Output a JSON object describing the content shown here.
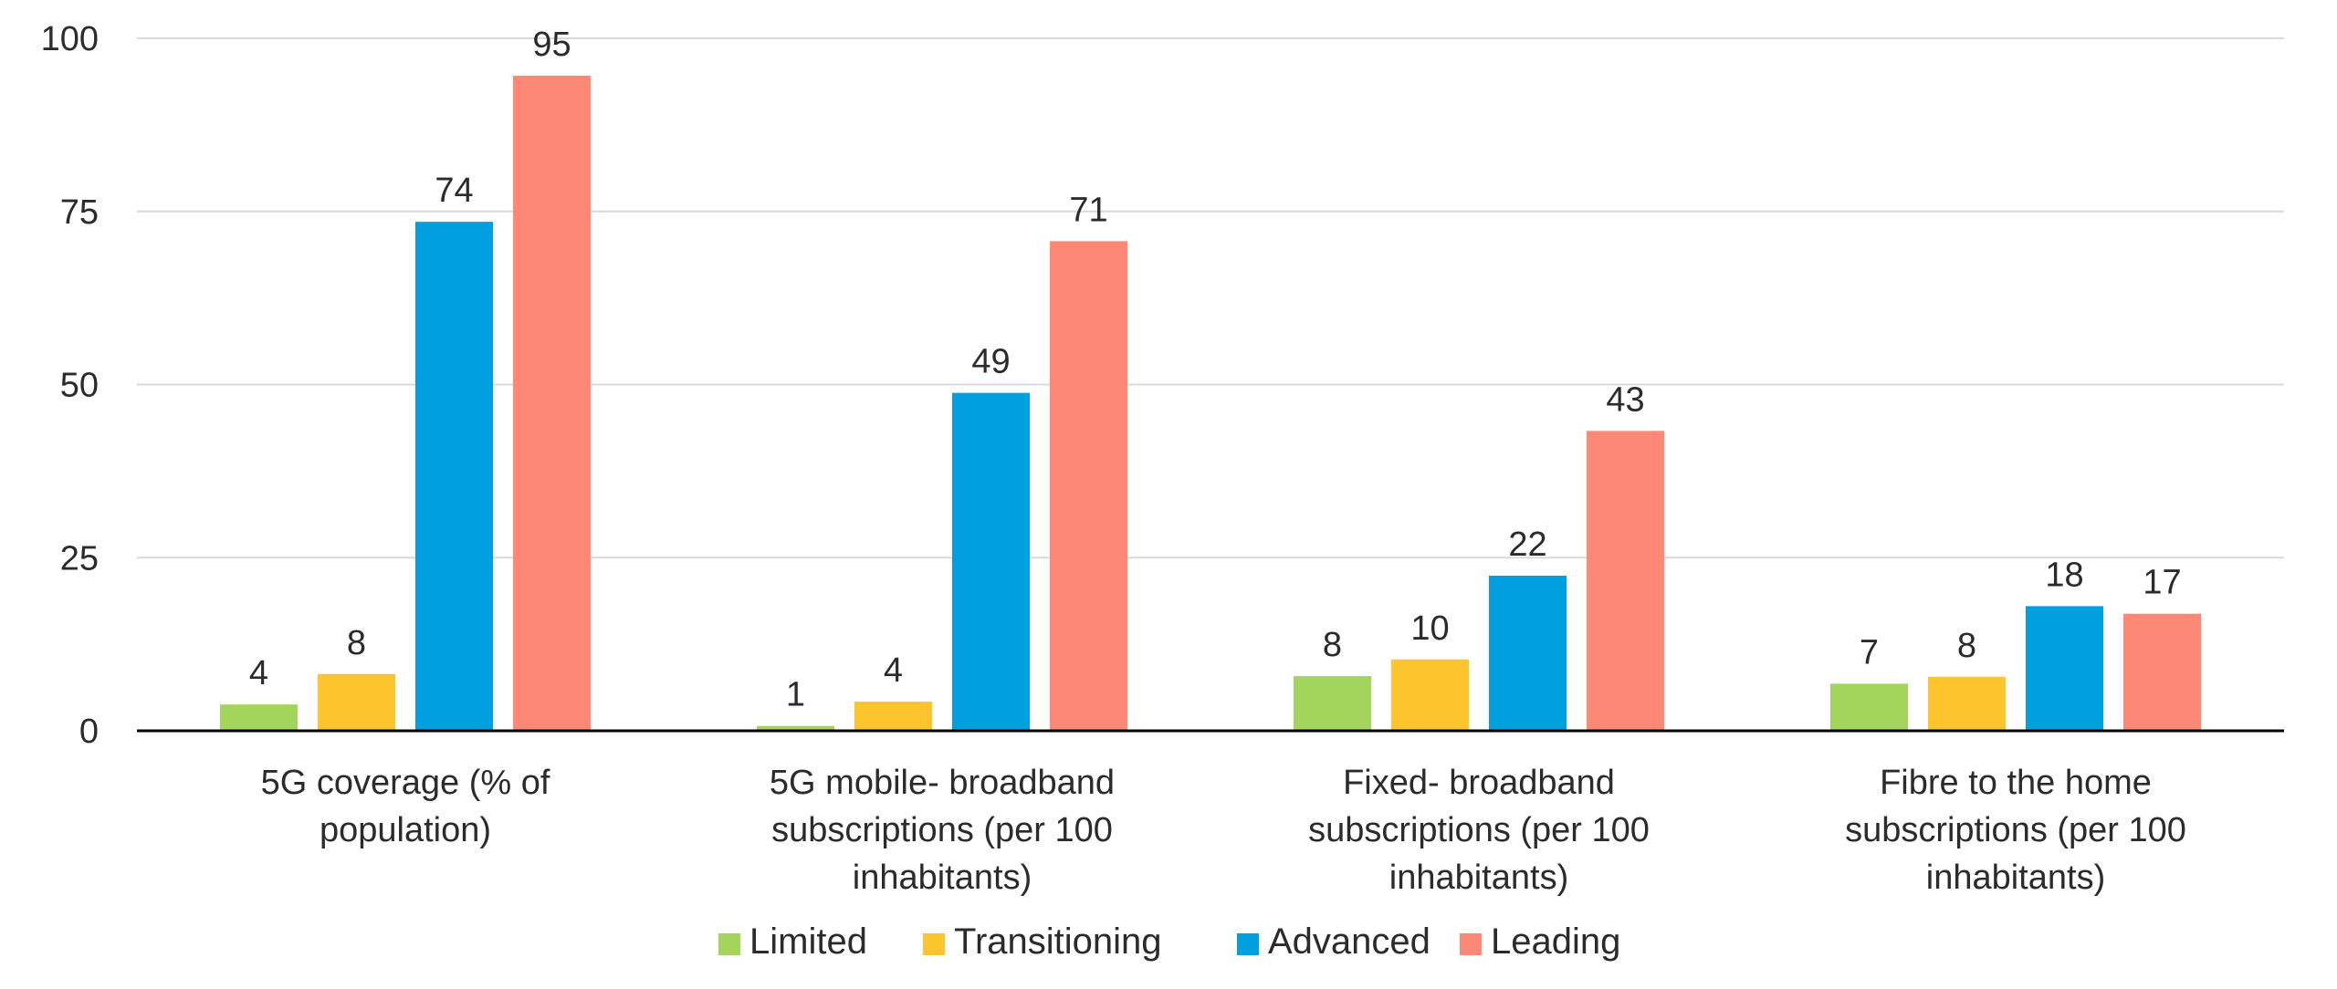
{
  "chart_data": {
    "type": "bar",
    "title": "",
    "xlabel": "",
    "ylabel": "",
    "ylim": [
      0,
      100
    ],
    "yticks": [
      0,
      25,
      50,
      75,
      100
    ],
    "grid": true,
    "legend_position": "bottom",
    "categories": [
      [
        "5G coverage (% of",
        "population)"
      ],
      [
        "5G mobile- broadband",
        "subscriptions (per 100",
        "inhabitants)"
      ],
      [
        "Fixed- broadband",
        "subscriptions (per 100",
        "inhabitants)"
      ],
      [
        "Fibre to the home",
        "subscriptions (per 100",
        "inhabitants)"
      ]
    ],
    "series": [
      {
        "name": "Limited",
        "color": "#a3d45c",
        "values": [
          3.8,
          0.7,
          7.9,
          6.8
        ],
        "labels": [
          "4",
          "1",
          "8",
          "7"
        ]
      },
      {
        "name": "Transitioning",
        "color": "#fcc52d",
        "values": [
          8.2,
          4.2,
          10.3,
          7.8
        ],
        "labels": [
          "8",
          "4",
          "10",
          "8"
        ]
      },
      {
        "name": "Advanced",
        "color": "#009fdf",
        "values": [
          73.5,
          48.8,
          22.4,
          18.0
        ],
        "labels": [
          "74",
          "49",
          "22",
          "18"
        ]
      },
      {
        "name": "Leading",
        "color": "#fd8876",
        "values": [
          94.6,
          70.7,
          43.3,
          16.9
        ],
        "labels": [
          "95",
          "71",
          "43",
          "17"
        ]
      }
    ]
  },
  "colors": {
    "grid": "#d9d9d9",
    "axis": "#000000",
    "title": "#009fdf"
  }
}
